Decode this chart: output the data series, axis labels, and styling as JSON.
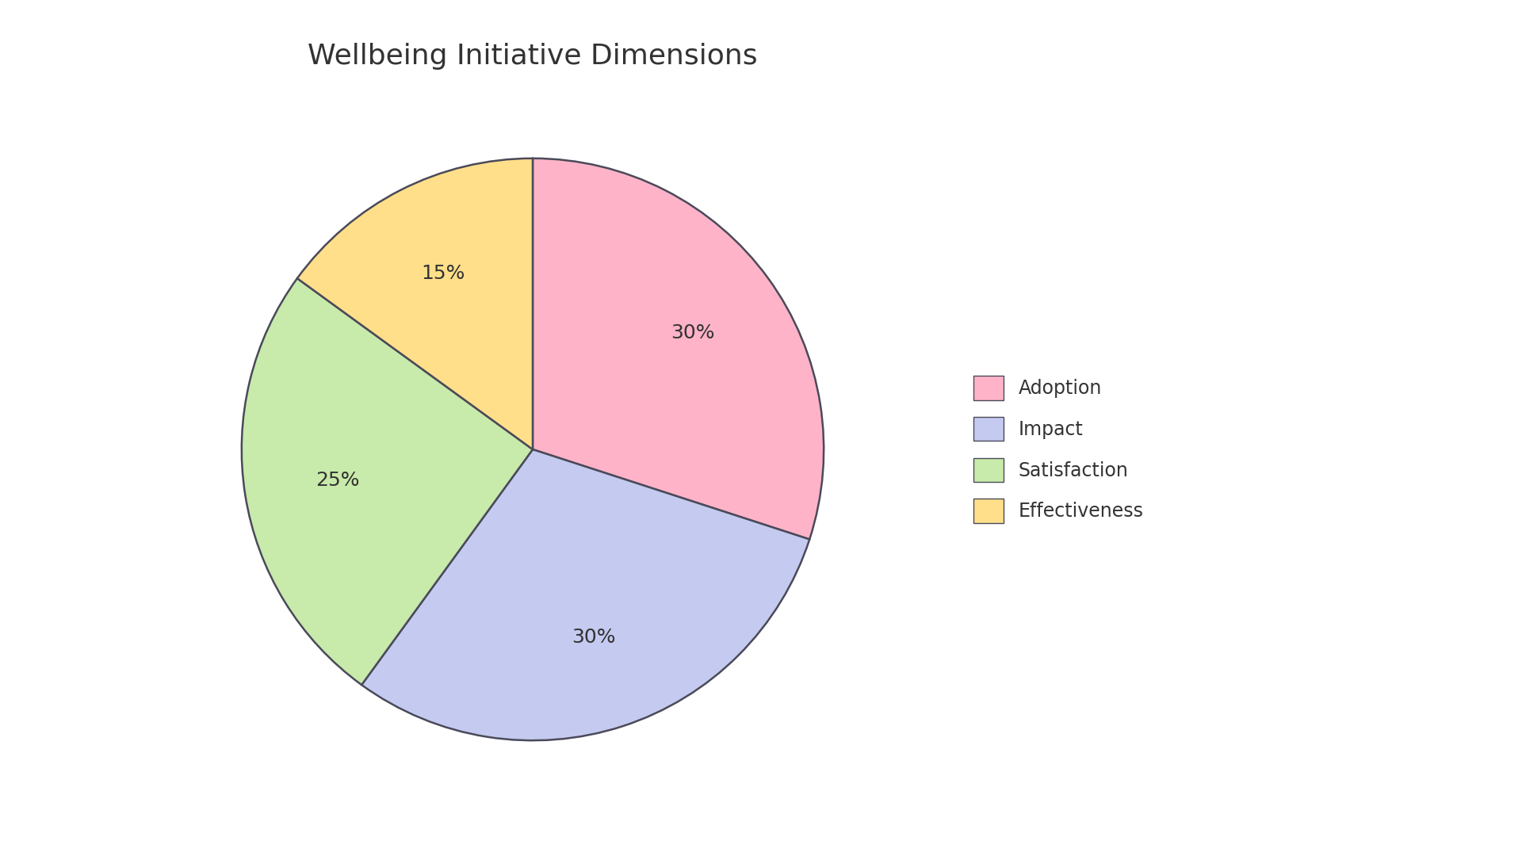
{
  "title": "Wellbeing Initiative Dimensions",
  "title_fontsize": 26,
  "title_color": "#333333",
  "background_color": "#ffffff",
  "slices": [
    {
      "label": "Adoption",
      "value": 30,
      "color": "#FFB3C8",
      "text_color": "#333333"
    },
    {
      "label": "Impact",
      "value": 30,
      "color": "#C5CAF0",
      "text_color": "#333333"
    },
    {
      "label": "Satisfaction",
      "value": 25,
      "color": "#C8EAAA",
      "text_color": "#333333"
    },
    {
      "label": "Effectiveness",
      "value": 15,
      "color": "#FFDF8A",
      "text_color": "#333333"
    }
  ],
  "autopct_fontsize": 18,
  "legend_fontsize": 17,
  "wedge_edgecolor": "#4a4a5a",
  "wedge_linewidth": 1.8,
  "startangle": 90,
  "counterclock": false,
  "pctdistance": 0.68
}
